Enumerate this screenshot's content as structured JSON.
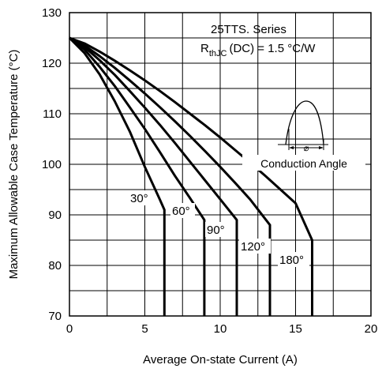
{
  "chart_data": {
    "type": "line",
    "xlabel": "Average On-state Current (A)",
    "ylabel": "Maximum Allowable Case Temperature (°C)",
    "xlim": [
      0,
      20
    ],
    "ylim": [
      70,
      130
    ],
    "x_ticks": [
      0,
      5,
      10,
      15,
      20
    ],
    "y_ticks": [
      70,
      80,
      90,
      100,
      110,
      120,
      130
    ],
    "grid": true,
    "annotations": {
      "series_title": "25TTS. Series",
      "rthjc_main": "R",
      "rthjc_sub": "thJC",
      "rthjc_rest": "(DC) = 1.5 °C/W",
      "phi_symbol": "⌀",
      "conduction_angle": "Conduction Angle"
    },
    "series": [
      {
        "label": "30°",
        "x_end": 6.3,
        "points": [
          [
            0,
            125
          ],
          [
            1,
            122
          ],
          [
            2,
            117.8
          ],
          [
            3,
            112.5
          ],
          [
            4,
            106.5
          ],
          [
            5,
            99.5
          ],
          [
            6,
            93
          ],
          [
            6.3,
            91
          ],
          [
            6.3,
            70
          ]
        ]
      },
      {
        "label": "60°",
        "x_end": 8.95,
        "points": [
          [
            0,
            125
          ],
          [
            1,
            122.7
          ],
          [
            2,
            119.3
          ],
          [
            3,
            115.5
          ],
          [
            4,
            111.3
          ],
          [
            5,
            107
          ],
          [
            6,
            102.4
          ],
          [
            7,
            97.7
          ],
          [
            8,
            93.3
          ],
          [
            8.95,
            89
          ],
          [
            8.95,
            70
          ]
        ]
      },
      {
        "label": "90°",
        "x_end": 11.1,
        "points": [
          [
            0,
            125
          ],
          [
            1,
            123.2
          ],
          [
            2,
            120.6
          ],
          [
            3,
            117.7
          ],
          [
            4,
            114.5
          ],
          [
            5,
            111.2
          ],
          [
            6,
            107.8
          ],
          [
            7,
            104.2
          ],
          [
            8,
            100.5
          ],
          [
            9,
            96.8
          ],
          [
            10,
            93.1
          ],
          [
            11.1,
            89
          ],
          [
            11.1,
            70
          ]
        ]
      },
      {
        "label": "120°",
        "x_end": 13.3,
        "points": [
          [
            0,
            125
          ],
          [
            1,
            123.5
          ],
          [
            2,
            121.4
          ],
          [
            3,
            119.1
          ],
          [
            4,
            116.6
          ],
          [
            5,
            114
          ],
          [
            6,
            111.3
          ],
          [
            7,
            108.5
          ],
          [
            8,
            105.6
          ],
          [
            9,
            102.6
          ],
          [
            10,
            99.5
          ],
          [
            11,
            96.3
          ],
          [
            12,
            93
          ],
          [
            13.3,
            88
          ],
          [
            13.3,
            70
          ]
        ]
      },
      {
        "label": "180°",
        "x_end": 16.1,
        "points": [
          [
            0,
            125
          ],
          [
            1,
            123.9
          ],
          [
            2,
            122.3
          ],
          [
            3,
            120.5
          ],
          [
            4,
            118.6
          ],
          [
            5,
            116.6
          ],
          [
            6,
            114.5
          ],
          [
            7,
            112.3
          ],
          [
            8,
            110
          ],
          [
            9,
            107.7
          ],
          [
            10,
            105.3
          ],
          [
            11,
            102.8
          ],
          [
            12,
            100.3
          ],
          [
            13,
            97.7
          ],
          [
            14,
            95
          ],
          [
            15,
            92.3
          ],
          [
            16.1,
            85
          ],
          [
            16.1,
            70
          ]
        ]
      }
    ]
  }
}
